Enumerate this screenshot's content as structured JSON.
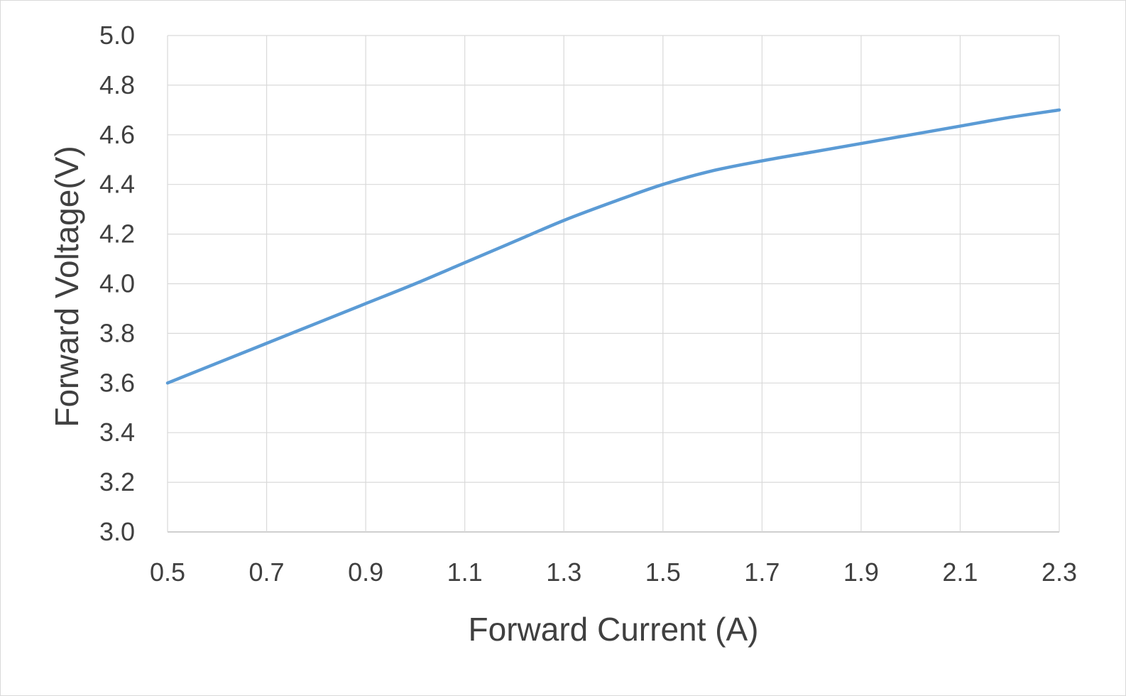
{
  "chart_data": {
    "type": "line",
    "title": "",
    "xlabel": "Forward Current (A)",
    "ylabel": "Forward Voltage(V)",
    "xlim": [
      0.5,
      2.3
    ],
    "ylim": [
      3.0,
      5.0
    ],
    "x_ticks": [
      "0.5",
      "0.7",
      "0.9",
      "1.1",
      "1.3",
      "1.5",
      "1.7",
      "1.9",
      "2.1",
      "2.3"
    ],
    "y_ticks": [
      "3.0",
      "3.2",
      "3.4",
      "3.6",
      "3.8",
      "4.0",
      "4.2",
      "4.4",
      "4.6",
      "4.8",
      "5.0"
    ],
    "grid": true,
    "legend": "none",
    "series": [
      {
        "color": "#5b9bd5",
        "x": [
          0.5,
          0.6,
          0.7,
          0.8,
          0.9,
          1.0,
          1.1,
          1.2,
          1.3,
          1.4,
          1.5,
          1.6,
          1.7,
          1.8,
          1.9,
          2.0,
          2.1,
          2.2,
          2.3
        ],
        "y": [
          3.6,
          3.68,
          3.76,
          3.84,
          3.92,
          4.0,
          4.085,
          4.17,
          4.255,
          4.33,
          4.4,
          4.455,
          4.495,
          4.53,
          4.565,
          4.6,
          4.635,
          4.67,
          4.7
        ]
      }
    ]
  }
}
